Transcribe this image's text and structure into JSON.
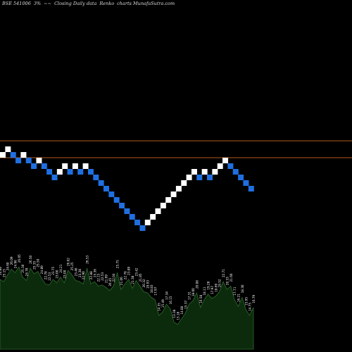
{
  "header": {
    "symbol": "BSE 541006",
    "percent": "3%",
    "arrows": "~~",
    "chart_label": "Closing Daily data",
    "chart_type": "Renko",
    "site": "charts MunafaSutra.com"
  },
  "colors": {
    "background": "#000000",
    "up_brick": "#ffffff",
    "down_brick": "#1f6fe0",
    "resistance_line": "#b65a1a",
    "volume_fill": "#0c2b0c",
    "volume_stroke": "#2e6b2e",
    "label_text": "#ffffff"
  },
  "chart_data": {
    "type": "renko",
    "brick_directions": [
      "up",
      "up",
      "down",
      "down",
      "up",
      "down",
      "down",
      "up",
      "down",
      "down",
      "down",
      "up",
      "up",
      "down",
      "up",
      "down",
      "up",
      "down",
      "down",
      "down",
      "down",
      "down",
      "down",
      "down",
      "down",
      "down",
      "down",
      "down",
      "up",
      "up",
      "up",
      "up",
      "up",
      "up",
      "up",
      "up",
      "up",
      "up",
      "down",
      "up",
      "down",
      "up",
      "up",
      "up",
      "down",
      "down",
      "down",
      "down",
      "down"
    ],
    "reference_lines": [
      {
        "name": "upper",
        "level_rank": 2
      },
      {
        "name": "lower",
        "level_rank": -1
      }
    ],
    "volume_labels": [
      "24.80",
      "25.15",
      "24.60",
      "26.09",
      "24.96",
      "26.05",
      "25.30",
      "24.78",
      "26.50",
      "25.35",
      "25.50",
      "24.89",
      "22.78",
      "22.53",
      "23.75",
      "23.00",
      "24.21",
      "23.00",
      "26.02",
      "25.25",
      "23.46",
      "23.38",
      "22.90",
      "26.53",
      "22.88",
      "23.36",
      "22.15",
      "22.53",
      "21.99",
      "20.45",
      "22.04",
      "25.75",
      "21.06",
      "22.78",
      "23.89",
      "21.38",
      "23.42",
      "21.85",
      "20.32",
      "19.93",
      "18.83",
      "17.97",
      "14.35",
      "15.49",
      "17.34",
      "16.15",
      "13.38",
      "13.18",
      "14.08",
      "15.37",
      "17.31",
      "18.00",
      "20.08",
      "16.58",
      "18.11",
      "19.28",
      "17.97",
      "18.69",
      "19.52",
      "22.71",
      "20.33",
      "21.60",
      "17.71",
      "16.21",
      "18.30",
      "15.95",
      "14.75",
      "16.79"
    ],
    "volume_profile": [
      62,
      60,
      66,
      71,
      68,
      73,
      64,
      61,
      72,
      67,
      69,
      63,
      58,
      57,
      62,
      59,
      64,
      59,
      70,
      66,
      61,
      60,
      58,
      72,
      58,
      60,
      56,
      57,
      55,
      52,
      56,
      68,
      53,
      58,
      62,
      54,
      61,
      56,
      51,
      50,
      46,
      44,
      30,
      33,
      40,
      36,
      24,
      22,
      27,
      32,
      40,
      43,
      50,
      37,
      44,
      49,
      45,
      47,
      51,
      60,
      53,
      56,
      44,
      38,
      46,
      35,
      30,
      37
    ]
  }
}
